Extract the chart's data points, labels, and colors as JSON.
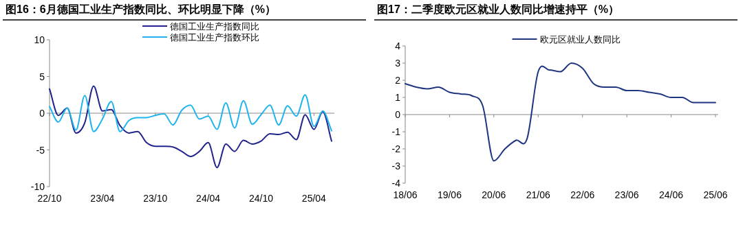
{
  "chart_data": [
    {
      "type": "line",
      "title": "图16：6月德国工业生产指数同比、环比明显下降（%）",
      "categories": [
        "22/10",
        null,
        null,
        null,
        null,
        null,
        "23/04",
        null,
        null,
        null,
        null,
        null,
        "23/10",
        null,
        null,
        null,
        null,
        null,
        "24/04",
        null,
        null,
        null,
        null,
        null,
        "24/10",
        null,
        null,
        null,
        null,
        null,
        "25/04",
        null,
        null
      ],
      "series": [
        {
          "name": "德国工业生产指数同比",
          "color": "#22238c",
          "values": [
            3.3,
            -0.3,
            0.7,
            -2.7,
            -1.3,
            3.7,
            0.3,
            0.5,
            -1.7,
            -2.7,
            -2.5,
            -4.0,
            -4.5,
            -4.5,
            -4.6,
            -5.2,
            -5.9,
            -5.2,
            -4.0,
            -7.4,
            -4.2,
            -5.2,
            -3.7,
            -4.2,
            -3.8,
            -2.8,
            -2.9,
            -2.6,
            -3.6,
            -0.2,
            -2.2,
            0.2,
            -3.8
          ]
        },
        {
          "name": "德国工业生产指数环比",
          "color": "#1fb4ee",
          "values": [
            0.9,
            -1.2,
            0.7,
            -2.3,
            2.4,
            -2.5,
            -0.8,
            1.6,
            -2.5,
            -1.0,
            -0.6,
            -0.6,
            -0.3,
            -0.1,
            -1.6,
            0.4,
            1.1,
            -0.8,
            -0.4,
            -2.2,
            1.4,
            -2.0,
            1.7,
            -1.5,
            -0.2,
            1.1,
            -1.6,
            1.0,
            -0.4,
            2.5,
            -1.8,
            0.3,
            -2.4
          ]
        }
      ],
      "ylim": [
        -10,
        10
      ],
      "yticks": [
        -10,
        -5,
        0,
        5,
        10
      ],
      "legend": "top",
      "marker": "none",
      "line_style": "solid"
    },
    {
      "type": "line",
      "title": "图17：二季度欧元区就业人数同比增速持平（%）",
      "categories": [
        "18/06",
        null,
        null,
        null,
        "19/06",
        null,
        null,
        null,
        "20/06",
        null,
        null,
        null,
        "21/06",
        null,
        null,
        null,
        "22/06",
        null,
        null,
        null,
        "23/06",
        null,
        null,
        null,
        "24/06",
        null,
        null,
        null,
        "25/06"
      ],
      "series": [
        {
          "name": "欧元区就业人数同比",
          "color": "#1f3580",
          "values": [
            1.8,
            1.6,
            1.5,
            1.6,
            1.3,
            1.2,
            1.1,
            0.5,
            -2.7,
            -2.0,
            -1.5,
            -1.4,
            2.5,
            2.6,
            2.5,
            3.0,
            2.7,
            1.8,
            1.6,
            1.6,
            1.4,
            1.4,
            1.3,
            1.2,
            1.0,
            1.0,
            0.7,
            0.7,
            0.7
          ]
        }
      ],
      "ylim": [
        -4,
        4
      ],
      "yticks": [
        -4,
        -3,
        -2,
        -1,
        0,
        1,
        2,
        3,
        4
      ],
      "legend": "top",
      "marker": "none",
      "line_style": "solid"
    }
  ]
}
